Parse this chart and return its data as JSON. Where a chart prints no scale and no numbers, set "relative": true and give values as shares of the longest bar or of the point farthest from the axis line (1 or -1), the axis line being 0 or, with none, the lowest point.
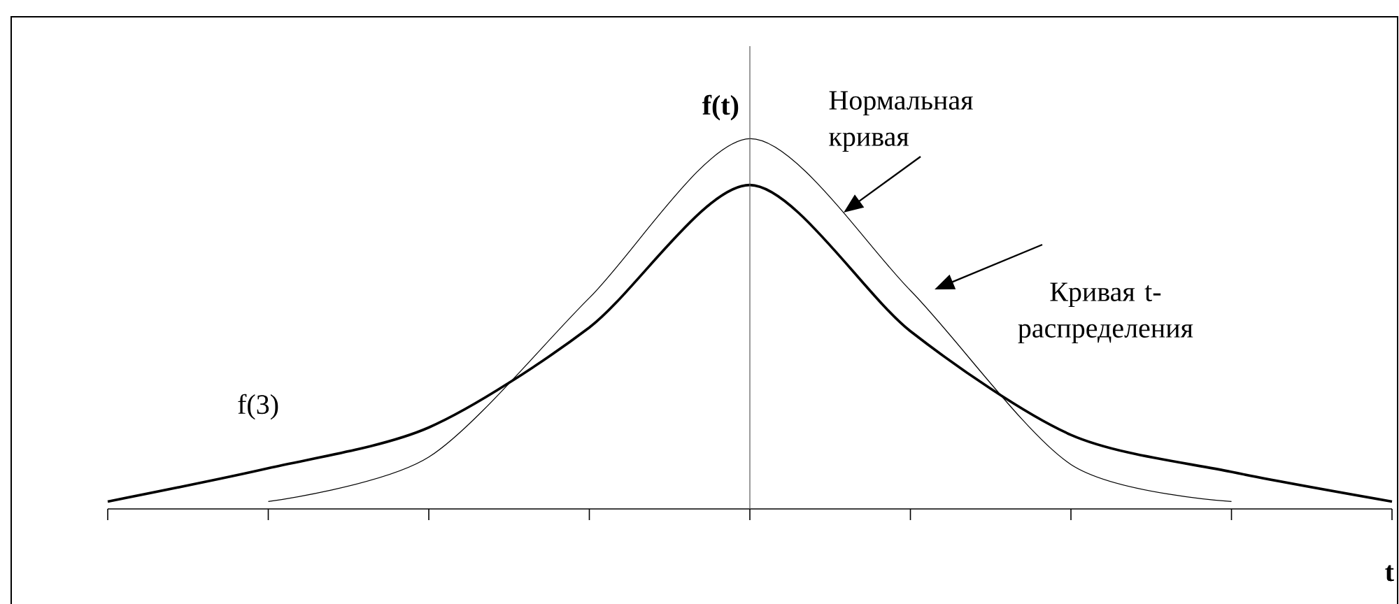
{
  "chart_data": {
    "type": "line",
    "relative": true,
    "xlabel": "t",
    "ylabel": "f(t)",
    "categories": [
      null,
      null,
      null,
      null,
      null,
      null,
      null,
      null,
      null
    ],
    "series": [
      {
        "name": "Нормальная кривая",
        "color": "#000000",
        "values": [
          null,
          0.02,
          0.14,
          0.57,
          1,
          0.59,
          0.12,
          0.02,
          null
        ]
      },
      {
        "name": "Кривая t-распределения",
        "color": "#000000",
        "values": [
          0.02,
          0.11,
          0.22,
          0.49,
          0.875,
          0.48,
          0.2,
          0.1,
          0.02
        ]
      }
    ],
    "annotations": [
      "f(3)"
    ]
  }
}
